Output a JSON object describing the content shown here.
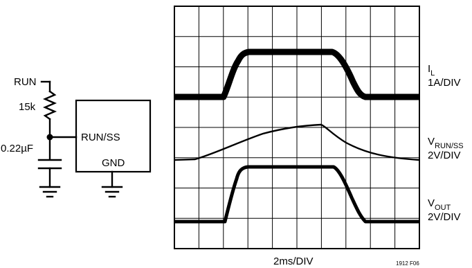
{
  "schematic": {
    "run_label": "RUN",
    "resistor_label": "15k",
    "capacitor_label": "0.22µF",
    "pin_runss_label": "RUN/SS",
    "pin_gnd_label": "GND"
  },
  "scope": {
    "time_scale_label": "2ms/DIV",
    "figure_id": "1912 F06",
    "grid_divisions": {
      "x": 10,
      "y": 8
    },
    "channels": [
      {
        "name_main": "I",
        "name_sub": "L",
        "scale": "1A/DIV"
      },
      {
        "name_main": "V",
        "name_sub": "RUN/SS",
        "scale": "2V/DIV"
      },
      {
        "name_main": "V",
        "name_sub": "OUT",
        "scale": "2V/DIV"
      }
    ]
  }
}
